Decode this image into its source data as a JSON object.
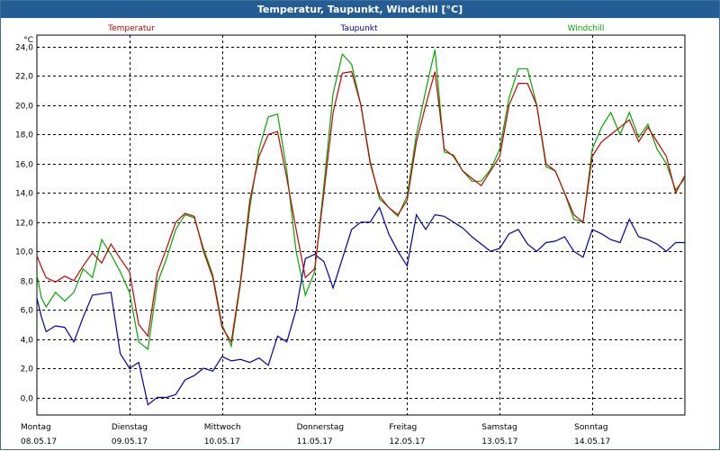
{
  "window": {
    "title": "Temperatur, Taupunkt, Windchill [°C]"
  },
  "chart_data": {
    "type": "line",
    "title": "Temperatur, Taupunkt, Windchill [°C]",
    "ylabel": "°C",
    "ylim": [
      -1.2,
      24.8
    ],
    "xlim": [
      0,
      7.0
    ],
    "grid": true,
    "yticks": [
      0,
      2,
      4,
      6,
      8,
      10,
      12,
      14,
      16,
      18,
      20,
      22,
      24
    ],
    "ytick_labels": [
      "0,0",
      "2,0",
      "4,0",
      "6,0",
      "8,0",
      "10,0",
      "12,0",
      "14,0",
      "16,0",
      "18,0",
      "20,0",
      "22,0",
      "24,0"
    ],
    "xticks": [
      {
        "pos": 0,
        "day": "Montag",
        "date": "08.05.17"
      },
      {
        "pos": 1,
        "day": "Dienstag",
        "date": "09.05.17"
      },
      {
        "pos": 2,
        "day": "Mittwoch",
        "date": "10.05.17"
      },
      {
        "pos": 3,
        "day": "Donnerstag",
        "date": "11.05.17"
      },
      {
        "pos": 4,
        "day": "Freitag",
        "date": "12.05.17"
      },
      {
        "pos": 5,
        "day": "Samstag",
        "date": "13.05.17"
      },
      {
        "pos": 6,
        "day": "Sonntag",
        "date": "14.05.17"
      }
    ],
    "series": [
      {
        "name": "Temperatur",
        "color": "#cc0000",
        "x": [
          0,
          0.05,
          0.1,
          0.2,
          0.3,
          0.4,
          0.5,
          0.6,
          0.7,
          0.8,
          0.9,
          1.0,
          1.1,
          1.2,
          1.3,
          1.4,
          1.5,
          1.6,
          1.7,
          1.8,
          1.9,
          2.0,
          2.1,
          2.2,
          2.3,
          2.4,
          2.5,
          2.6,
          2.7,
          2.8,
          2.9,
          3.0,
          3.1,
          3.2,
          3.3,
          3.4,
          3.5,
          3.6,
          3.7,
          3.8,
          3.9,
          4.0,
          4.1,
          4.2,
          4.3,
          4.4,
          4.5,
          4.6,
          4.7,
          4.8,
          4.9,
          5.0,
          5.1,
          5.2,
          5.3,
          5.4,
          5.5,
          5.6,
          5.7,
          5.8,
          5.9,
          6.0,
          6.1,
          6.2,
          6.3,
          6.4,
          6.5,
          6.6,
          6.7,
          6.8,
          6.9,
          7.0
        ],
        "values": [
          9.7,
          8.9,
          8.2,
          7.9,
          8.3,
          8.0,
          9.0,
          9.9,
          9.2,
          10.5,
          9.5,
          8.6,
          5.0,
          4.2,
          8.5,
          10.2,
          12.0,
          12.6,
          12.4,
          10.0,
          8.2,
          4.8,
          3.8,
          8.0,
          13.5,
          16.5,
          18.0,
          18.2,
          15.0,
          11.5,
          8.2,
          8.8,
          14.0,
          19.5,
          22.2,
          22.3,
          20.0,
          16.0,
          13.8,
          13.0,
          12.5,
          13.5,
          17.5,
          20.0,
          22.3,
          17.0,
          16.5,
          15.5,
          15.0,
          14.5,
          15.5,
          16.5,
          20.0,
          21.5,
          21.5,
          20.0,
          16.0,
          15.5,
          14.0,
          12.5,
          12.0,
          16.5,
          17.5,
          18.0,
          18.5,
          19.0,
          17.5,
          18.5,
          17.5,
          16.5,
          14.0,
          15.2
        ]
      },
      {
        "name": "Taupunkt",
        "color": "#0000aa",
        "x": [
          0,
          0.05,
          0.1,
          0.2,
          0.3,
          0.4,
          0.5,
          0.6,
          0.7,
          0.8,
          0.9,
          1.0,
          1.1,
          1.2,
          1.3,
          1.4,
          1.5,
          1.6,
          1.7,
          1.8,
          1.9,
          2.0,
          2.1,
          2.2,
          2.3,
          2.4,
          2.5,
          2.6,
          2.7,
          2.8,
          2.9,
          3.0,
          3.1,
          3.2,
          3.3,
          3.4,
          3.5,
          3.6,
          3.7,
          3.8,
          3.9,
          4.0,
          4.1,
          4.2,
          4.3,
          4.4,
          4.5,
          4.6,
          4.7,
          4.8,
          4.9,
          5.0,
          5.1,
          5.2,
          5.3,
          5.4,
          5.5,
          5.6,
          5.7,
          5.8,
          5.9,
          6.0,
          6.1,
          6.2,
          6.3,
          6.4,
          6.5,
          6.6,
          6.7,
          6.8,
          6.9,
          7.0
        ],
        "values": [
          6.8,
          5.5,
          4.5,
          4.9,
          4.8,
          3.8,
          5.5,
          7.0,
          7.1,
          7.2,
          3.0,
          2.0,
          2.4,
          -0.5,
          0.0,
          0.0,
          0.2,
          1.2,
          1.5,
          2.0,
          1.8,
          2.8,
          2.5,
          2.6,
          2.4,
          2.7,
          2.2,
          4.2,
          3.8,
          6.0,
          9.5,
          9.8,
          9.3,
          7.5,
          9.5,
          11.5,
          12.0,
          12.0,
          13.0,
          11.2,
          10.0,
          9.0,
          12.5,
          11.5,
          12.5,
          12.4,
          12.0,
          11.6,
          11.0,
          10.5,
          10.0,
          10.2,
          11.2,
          11.5,
          10.5,
          10.0,
          10.6,
          10.7,
          11.0,
          10.0,
          9.6,
          11.5,
          11.2,
          10.8,
          10.6,
          12.2,
          11.0,
          10.8,
          10.5,
          10.0,
          10.6,
          10.6
        ]
      },
      {
        "name": "Windchill",
        "color": "#00aa00",
        "x": [
          0,
          0.05,
          0.1,
          0.2,
          0.3,
          0.4,
          0.5,
          0.6,
          0.7,
          0.8,
          0.9,
          1.0,
          1.1,
          1.2,
          1.3,
          1.4,
          1.5,
          1.6,
          1.7,
          1.8,
          1.9,
          2.0,
          2.1,
          2.2,
          2.3,
          2.4,
          2.5,
          2.6,
          2.7,
          2.8,
          2.9,
          3.0,
          3.1,
          3.2,
          3.3,
          3.4,
          3.5,
          3.6,
          3.7,
          3.8,
          3.9,
          4.0,
          4.1,
          4.2,
          4.3,
          4.4,
          4.5,
          4.6,
          4.7,
          4.8,
          4.9,
          5.0,
          5.1,
          5.2,
          5.3,
          5.4,
          5.5,
          5.6,
          5.7,
          5.8,
          5.9,
          6.0,
          6.1,
          6.2,
          6.3,
          6.4,
          6.5,
          6.6,
          6.7,
          6.8,
          6.9,
          7.0
        ],
        "values": [
          8.4,
          6.8,
          6.2,
          7.2,
          6.6,
          7.2,
          8.8,
          8.2,
          10.8,
          9.8,
          8.6,
          7.2,
          3.8,
          3.3,
          7.8,
          9.5,
          11.5,
          12.5,
          12.3,
          10.2,
          8.4,
          5.0,
          3.5,
          7.8,
          13.0,
          17.0,
          19.2,
          19.4,
          15.5,
          10.0,
          7.0,
          8.6,
          14.5,
          20.8,
          23.5,
          22.8,
          20.0,
          16.2,
          13.6,
          13.0,
          12.4,
          13.8,
          18.0,
          21.0,
          23.8,
          16.8,
          16.6,
          15.5,
          14.8,
          14.8,
          15.6,
          17.0,
          20.5,
          22.5,
          22.5,
          20.0,
          15.8,
          15.5,
          14.0,
          12.2,
          12.0,
          17.0,
          18.5,
          19.5,
          18.0,
          19.5,
          17.8,
          18.7,
          17.0,
          16.0,
          14.2,
          15.0
        ]
      }
    ]
  }
}
